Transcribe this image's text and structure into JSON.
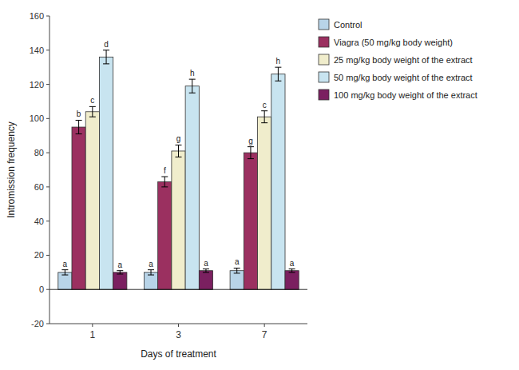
{
  "chart_data": {
    "type": "bar",
    "categories": [
      "1",
      "3",
      "7"
    ],
    "series": [
      {
        "name": "Control",
        "color": "#b8d4e8",
        "values": [
          10,
          10,
          11
        ],
        "errors": [
          1.5,
          1.5,
          1.5
        ],
        "annotations": [
          "a",
          "a",
          "a"
        ]
      },
      {
        "name": "Viagra (50 mg/kg body weight)",
        "color": "#9b3060",
        "values": [
          95,
          63,
          80
        ],
        "errors": [
          4,
          3,
          3.5
        ],
        "annotations": [
          "b",
          "f",
          "g"
        ]
      },
      {
        "name": "25 mg/kg body weight of the extract",
        "color": "#f0edcc",
        "values": [
          104,
          81,
          101
        ],
        "errors": [
          3,
          3.5,
          3.5
        ],
        "annotations": [
          "c",
          "g",
          "c"
        ]
      },
      {
        "name": "50 mg/kg body weight of the extract",
        "color": "#c8e4f0",
        "values": [
          136,
          119,
          126
        ],
        "errors": [
          4,
          4,
          4
        ],
        "annotations": [
          "d",
          "h",
          "h"
        ]
      },
      {
        "name": "100 mg/kg body weight of the extract",
        "color": "#7b2060",
        "values": [
          10,
          11,
          11
        ],
        "errors": [
          1,
          1,
          1
        ],
        "annotations": [
          "a",
          "a",
          "a"
        ]
      }
    ],
    "xlabel": "Days of treatment",
    "ylabel": "Intromission frequency",
    "ylim": [
      -20,
      160
    ],
    "yticks": [
      -20,
      0,
      20,
      40,
      60,
      80,
      100,
      120,
      140,
      160
    ],
    "grid": false,
    "legend": "right"
  }
}
